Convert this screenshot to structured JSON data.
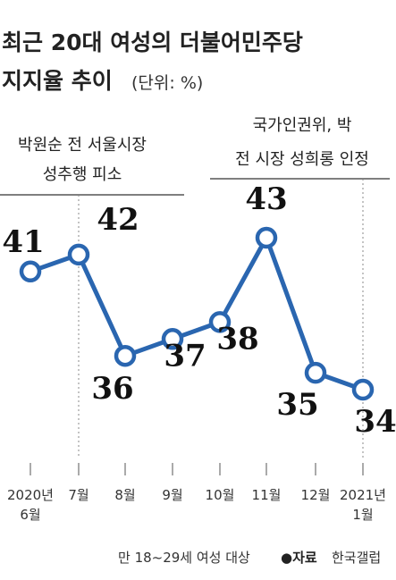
{
  "title": {
    "line1": "최근 20대 여성의 더불어민주당",
    "line2": "지지율 추이",
    "unit": "(단위: %)"
  },
  "annotations": [
    {
      "lines": [
        "박원순 전 서울시장",
        "성추행 피소"
      ]
    },
    {
      "lines": [
        "국가인권위, 박",
        "전 시장 성희롱 인정"
      ]
    }
  ],
  "chart_data": {
    "type": "line",
    "title": "최근 20대 여성의 더불어민주당 지지율 추이",
    "ylabel": "",
    "xlabel": "",
    "categories": [
      "2020년 6월",
      "7월",
      "8월",
      "9월",
      "10월",
      "11월",
      "12월",
      "2021년 1월"
    ],
    "values": [
      41,
      42,
      36,
      37,
      38,
      43,
      35,
      34
    ],
    "tick_labels": [
      [
        "2020년",
        "6월"
      ],
      [
        "7월"
      ],
      [
        "8월"
      ],
      [
        "9월"
      ],
      [
        "10월"
      ],
      [
        "11월"
      ],
      [
        "12월"
      ],
      [
        "2021년",
        "1월"
      ]
    ],
    "line_color": "#2a66b0",
    "marker_fill": "#ffffff",
    "grid": false
  },
  "footer": {
    "note": "만 18~29세 여성 대상",
    "source_label": "●자료",
    "source": "한국갤럽"
  }
}
